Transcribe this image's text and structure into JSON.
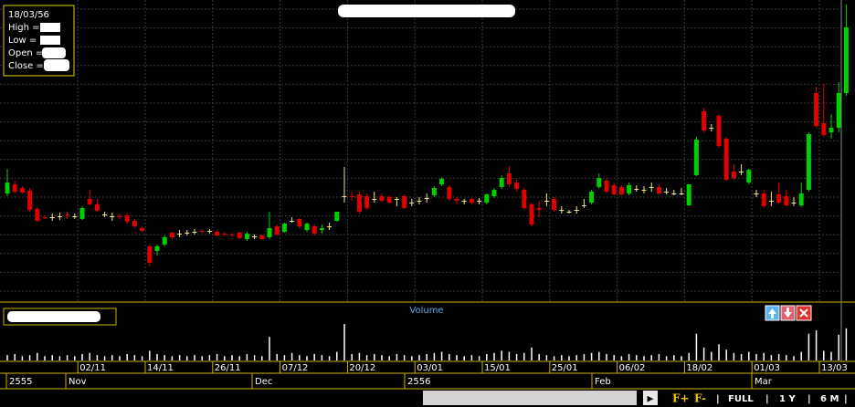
{
  "chart_data": {
    "type": "candlestick",
    "info": {
      "date": "18/03/56",
      "labels": [
        "High  =",
        "Low  =",
        "Open  =",
        "Close  ="
      ]
    },
    "up_color": "#00d000",
    "down_color": "#e00000",
    "flat_color": "#f0e68c",
    "ylim": [
      0,
      330
    ],
    "categories": [
      null,
      null,
      null,
      null,
      null,
      null,
      null,
      null,
      null,
      null,
      null,
      "02/11",
      null,
      null,
      null,
      null,
      null,
      null,
      null,
      null,
      "14/11",
      null,
      null,
      null,
      null,
      null,
      null,
      null,
      null,
      "26/11",
      null,
      null,
      null,
      null,
      null,
      null,
      null,
      null,
      "07/12",
      null,
      null,
      null,
      null,
      null,
      null,
      null,
      null,
      "20/12",
      null,
      null,
      null,
      null,
      null,
      null,
      null,
      null,
      "03/01",
      null,
      null,
      null,
      null,
      null,
      null,
      null,
      null,
      "15/01",
      null,
      null,
      null,
      null,
      null,
      null,
      null,
      null,
      "25/01",
      null,
      null,
      null,
      null,
      null,
      null,
      null,
      null,
      "06/02",
      null,
      null,
      null,
      null,
      null,
      null,
      null,
      null,
      "18/02",
      null,
      null,
      null,
      null,
      null,
      null,
      null,
      null,
      "01/03",
      null,
      null,
      null,
      null,
      null,
      null,
      null,
      null,
      "13/03",
      null,
      null
    ],
    "ohlc": [
      [
        118,
        145,
        115,
        130
      ],
      [
        128,
        132,
        118,
        120
      ],
      [
        124,
        126,
        118,
        119
      ],
      [
        121,
        124,
        98,
        100
      ],
      [
        101,
        103,
        87,
        88
      ],
      [
        92,
        94,
        90,
        91
      ],
      [
        92,
        96,
        88,
        92
      ],
      [
        93,
        97,
        89,
        93
      ],
      [
        95,
        98,
        90,
        94
      ],
      [
        93,
        96,
        90,
        93
      ],
      [
        90,
        104,
        89,
        102
      ],
      [
        112,
        122,
        105,
        106
      ],
      [
        106,
        112,
        98,
        99
      ],
      [
        95,
        98,
        92,
        95
      ],
      [
        93,
        97,
        88,
        93
      ],
      [
        93,
        96,
        90,
        92
      ],
      [
        94,
        96,
        85,
        87
      ],
      [
        88,
        90,
        80,
        82
      ],
      [
        80,
        82,
        76,
        77
      ],
      [
        60,
        62,
        38,
        42
      ],
      [
        55,
        62,
        50,
        60
      ],
      [
        62,
        72,
        60,
        70
      ],
      [
        75,
        76,
        68,
        70
      ],
      [
        74,
        78,
        70,
        74
      ],
      [
        75,
        78,
        72,
        75
      ],
      [
        76,
        79,
        73,
        76
      ],
      [
        77,
        79,
        74,
        76
      ],
      [
        77,
        79,
        74,
        77
      ],
      [
        76,
        78,
        71,
        72
      ],
      [
        74,
        76,
        71,
        73
      ],
      [
        73,
        75,
        70,
        72
      ],
      [
        75,
        76,
        68,
        69
      ],
      [
        68,
        76,
        66,
        74
      ],
      [
        71,
        73,
        68,
        71
      ],
      [
        72,
        73,
        67,
        68
      ],
      [
        70,
        98,
        68,
        80
      ],
      [
        82,
        84,
        72,
        73
      ],
      [
        76,
        86,
        75,
        85
      ],
      [
        88,
        92,
        86,
        88
      ],
      [
        90,
        91,
        80,
        82
      ],
      [
        78,
        86,
        76,
        85
      ],
      [
        82,
        84,
        72,
        74
      ],
      [
        78,
        84,
        74,
        80
      ],
      [
        82,
        86,
        78,
        82
      ],
      [
        88,
        98,
        87,
        98
      ],
      [
        115,
        147,
        108,
        115
      ],
      [
        115,
        120,
        110,
        114
      ],
      [
        117,
        120,
        96,
        98
      ],
      [
        115,
        118,
        100,
        102
      ],
      [
        112,
        120,
        108,
        112
      ],
      [
        115,
        118,
        108,
        110
      ],
      [
        114,
        116,
        107,
        108
      ],
      [
        112,
        114,
        104,
        112
      ],
      [
        115,
        117,
        101,
        102
      ],
      [
        108,
        112,
        104,
        108
      ],
      [
        110,
        114,
        106,
        110
      ],
      [
        113,
        118,
        108,
        113
      ],
      [
        116,
        126,
        114,
        124
      ],
      [
        128,
        136,
        126,
        134
      ],
      [
        125,
        127,
        110,
        112
      ],
      [
        112,
        114,
        106,
        110
      ],
      [
        110,
        112,
        106,
        110
      ],
      [
        112,
        113,
        106,
        108
      ],
      [
        110,
        113,
        106,
        110
      ],
      [
        108,
        118,
        106,
        117
      ],
      [
        115,
        124,
        113,
        122
      ],
      [
        125,
        138,
        123,
        135
      ],
      [
        140,
        148,
        125,
        128
      ],
      [
        130,
        133,
        120,
        123
      ],
      [
        122,
        124,
        100,
        102
      ],
      [
        106,
        108,
        82,
        84
      ],
      [
        102,
        110,
        92,
        100
      ],
      [
        110,
        118,
        104,
        110
      ],
      [
        112,
        114,
        98,
        100
      ],
      [
        100,
        104,
        96,
        100
      ],
      [
        98,
        100,
        96,
        98
      ],
      [
        100,
        104,
        96,
        100
      ],
      [
        105,
        112,
        102,
        105
      ],
      [
        108,
        122,
        106,
        120
      ],
      [
        125,
        140,
        123,
        135
      ],
      [
        132,
        135,
        118,
        120
      ],
      [
        127,
        130,
        116,
        117
      ],
      [
        125,
        127,
        116,
        117
      ],
      [
        118,
        130,
        116,
        127
      ],
      [
        123,
        127,
        120,
        123
      ],
      [
        122,
        126,
        118,
        122
      ],
      [
        125,
        130,
        120,
        125
      ],
      [
        125,
        128,
        117,
        118
      ],
      [
        120,
        124,
        117,
        120
      ],
      [
        118,
        122,
        116,
        118
      ],
      [
        118,
        124,
        116,
        118
      ],
      [
        105,
        128,
        104,
        128
      ],
      [
        138,
        180,
        137,
        177
      ],
      [
        208,
        212,
        185,
        187
      ],
      [
        190,
        194,
        186,
        190
      ],
      [
        203,
        205,
        168,
        170
      ],
      [
        178,
        180,
        132,
        133
      ],
      [
        142,
        150,
        133,
        135
      ],
      [
        142,
        150,
        138,
        142
      ],
      [
        130,
        145,
        128,
        144
      ],
      [
        118,
        122,
        114,
        118
      ],
      [
        118,
        122,
        103,
        104
      ],
      [
        110,
        120,
        104,
        110
      ],
      [
        117,
        130,
        107,
        108
      ],
      [
        115,
        122,
        104,
        105
      ],
      [
        108,
        114,
        104,
        108
      ],
      [
        105,
        130,
        103,
        118
      ],
      [
        122,
        185,
        120,
        183
      ],
      [
        228,
        235,
        190,
        192
      ],
      [
        195,
        238,
        180,
        182
      ],
      [
        185,
        205,
        178,
        190
      ],
      [
        190,
        240,
        185,
        228
      ],
      [
        228,
        325,
        225,
        300
      ]
    ],
    "volume": {
      "title": "Volume",
      "ylim": [
        0,
        40
      ],
      "color": "#ffffff",
      "values": [
        5,
        6,
        4,
        5,
        7,
        4,
        5,
        4,
        5,
        4,
        6,
        7,
        5,
        4,
        5,
        4,
        6,
        5,
        4,
        9,
        6,
        5,
        4,
        5,
        4,
        5,
        4,
        5,
        6,
        4,
        5,
        4,
        6,
        5,
        4,
        22,
        6,
        5,
        7,
        5,
        4,
        6,
        5,
        4,
        8,
        34,
        6,
        7,
        5,
        6,
        5,
        4,
        6,
        5,
        4,
        5,
        6,
        7,
        8,
        6,
        5,
        4,
        5,
        4,
        6,
        7,
        9,
        8,
        6,
        7,
        12,
        6,
        5,
        4,
        5,
        4,
        5,
        6,
        7,
        8,
        6,
        5,
        4,
        6,
        5,
        4,
        5,
        6,
        4,
        5,
        4,
        7,
        25,
        12,
        8,
        15,
        10,
        7,
        6,
        8,
        6,
        7,
        5,
        6,
        5,
        4,
        8,
        25,
        28,
        9,
        8,
        24,
        30
      ]
    },
    "periods": [
      "2555",
      "Nov",
      "Dec",
      "2556",
      "Feb",
      "Mar"
    ],
    "controls": {
      "scroll": "▶",
      "f_plus": "F+",
      "f_minus": "F-",
      "full": "FULL",
      "y1": "1 Y",
      "m6": "6 M",
      "sep": "|"
    }
  }
}
